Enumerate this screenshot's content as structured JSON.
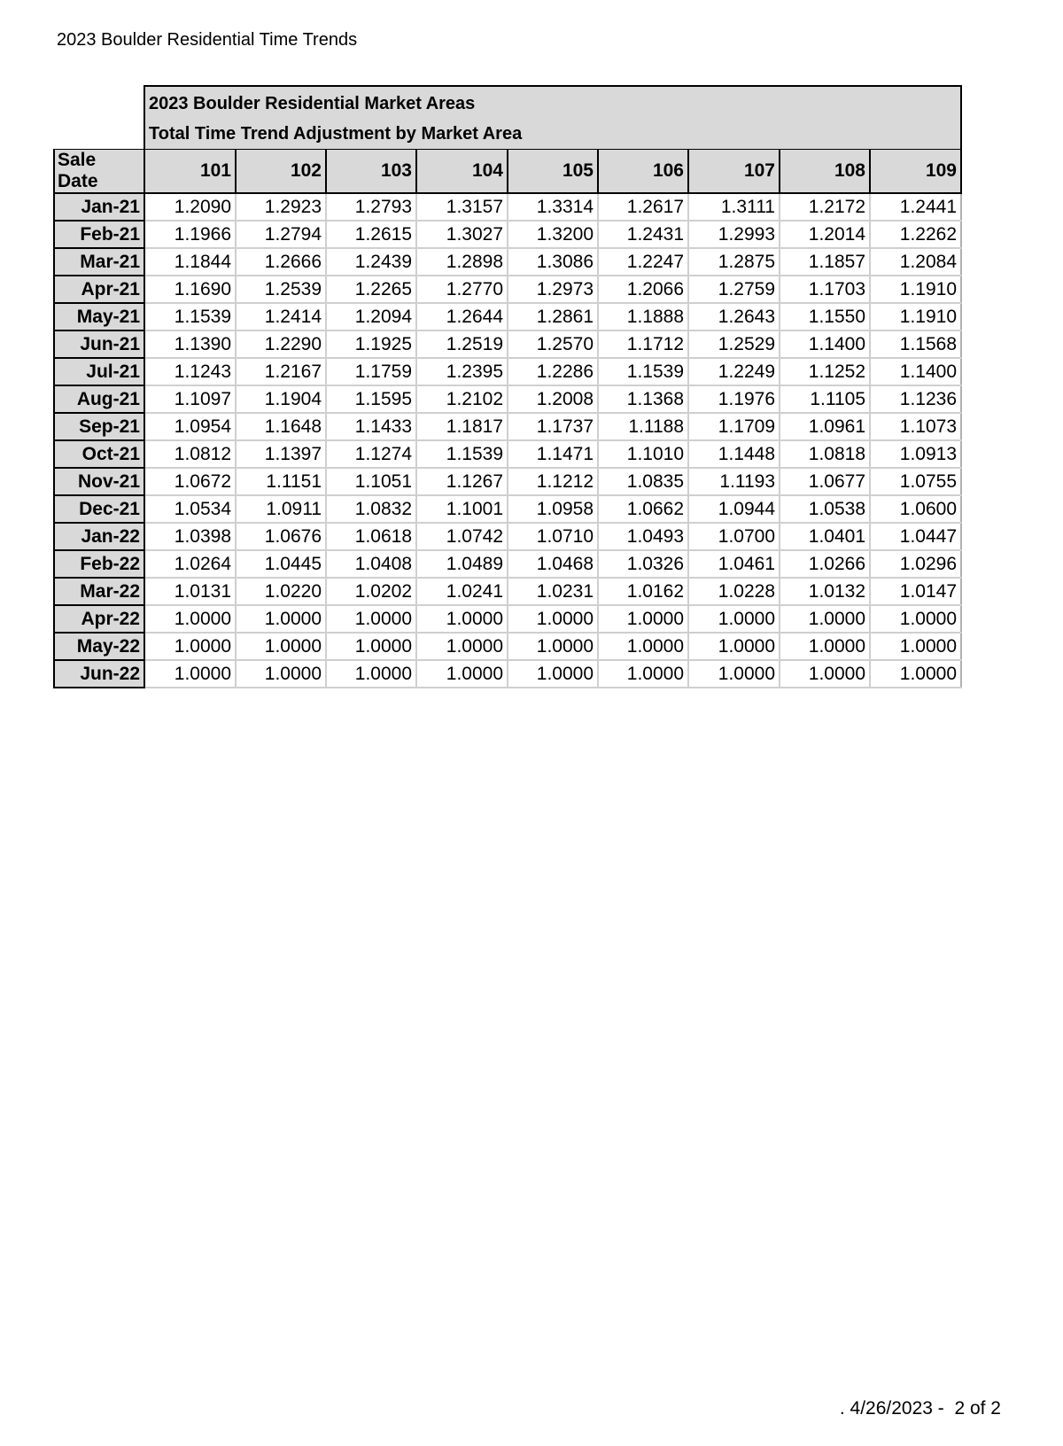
{
  "page_title": "2023 Boulder Residential Time Trends",
  "table": {
    "title_line1": "2023 Boulder Residential Market Areas",
    "title_line2": "Total Time Trend Adjustment by Market Area",
    "corner_header": "Sale Date",
    "columns": [
      "101",
      "102",
      "103",
      "104",
      "105",
      "106",
      "107",
      "108",
      "109"
    ],
    "rows": [
      {
        "date": "Jan-21",
        "values": [
          "1.2090",
          "1.2923",
          "1.2793",
          "1.3157",
          "1.3314",
          "1.2617",
          "1.3111",
          "1.2172",
          "1.2441"
        ]
      },
      {
        "date": "Feb-21",
        "values": [
          "1.1966",
          "1.2794",
          "1.2615",
          "1.3027",
          "1.3200",
          "1.2431",
          "1.2993",
          "1.2014",
          "1.2262"
        ]
      },
      {
        "date": "Mar-21",
        "values": [
          "1.1844",
          "1.2666",
          "1.2439",
          "1.2898",
          "1.3086",
          "1.2247",
          "1.2875",
          "1.1857",
          "1.2084"
        ]
      },
      {
        "date": "Apr-21",
        "values": [
          "1.1690",
          "1.2539",
          "1.2265",
          "1.2770",
          "1.2973",
          "1.2066",
          "1.2759",
          "1.1703",
          "1.1910"
        ]
      },
      {
        "date": "May-21",
        "values": [
          "1.1539",
          "1.2414",
          "1.2094",
          "1.2644",
          "1.2861",
          "1.1888",
          "1.2643",
          "1.1550",
          "1.1910"
        ]
      },
      {
        "date": "Jun-21",
        "values": [
          "1.1390",
          "1.2290",
          "1.1925",
          "1.2519",
          "1.2570",
          "1.1712",
          "1.2529",
          "1.1400",
          "1.1568"
        ]
      },
      {
        "date": "Jul-21",
        "values": [
          "1.1243",
          "1.2167",
          "1.1759",
          "1.2395",
          "1.2286",
          "1.1539",
          "1.2249",
          "1.1252",
          "1.1400"
        ]
      },
      {
        "date": "Aug-21",
        "values": [
          "1.1097",
          "1.1904",
          "1.1595",
          "1.2102",
          "1.2008",
          "1.1368",
          "1.1976",
          "1.1105",
          "1.1236"
        ]
      },
      {
        "date": "Sep-21",
        "values": [
          "1.0954",
          "1.1648",
          "1.1433",
          "1.1817",
          "1.1737",
          "1.1188",
          "1.1709",
          "1.0961",
          "1.1073"
        ]
      },
      {
        "date": "Oct-21",
        "values": [
          "1.0812",
          "1.1397",
          "1.1274",
          "1.1539",
          "1.1471",
          "1.1010",
          "1.1448",
          "1.0818",
          "1.0913"
        ]
      },
      {
        "date": "Nov-21",
        "values": [
          "1.0672",
          "1.1151",
          "1.1051",
          "1.1267",
          "1.1212",
          "1.0835",
          "1.1193",
          "1.0677",
          "1.0755"
        ]
      },
      {
        "date": "Dec-21",
        "values": [
          "1.0534",
          "1.0911",
          "1.0832",
          "1.1001",
          "1.0958",
          "1.0662",
          "1.0944",
          "1.0538",
          "1.0600"
        ]
      },
      {
        "date": "Jan-22",
        "values": [
          "1.0398",
          "1.0676",
          "1.0618",
          "1.0742",
          "1.0710",
          "1.0493",
          "1.0700",
          "1.0401",
          "1.0447"
        ]
      },
      {
        "date": "Feb-22",
        "values": [
          "1.0264",
          "1.0445",
          "1.0408",
          "1.0489",
          "1.0468",
          "1.0326",
          "1.0461",
          "1.0266",
          "1.0296"
        ]
      },
      {
        "date": "Mar-22",
        "values": [
          "1.0131",
          "1.0220",
          "1.0202",
          "1.0241",
          "1.0231",
          "1.0162",
          "1.0228",
          "1.0132",
          "1.0147"
        ]
      },
      {
        "date": "Apr-22",
        "values": [
          "1.0000",
          "1.0000",
          "1.0000",
          "1.0000",
          "1.0000",
          "1.0000",
          "1.0000",
          "1.0000",
          "1.0000"
        ]
      },
      {
        "date": "May-22",
        "values": [
          "1.0000",
          "1.0000",
          "1.0000",
          "1.0000",
          "1.0000",
          "1.0000",
          "1.0000",
          "1.0000",
          "1.0000"
        ]
      },
      {
        "date": "Jun-22",
        "values": [
          "1.0000",
          "1.0000",
          "1.0000",
          "1.0000",
          "1.0000",
          "1.0000",
          "1.0000",
          "1.0000",
          "1.0000"
        ]
      }
    ]
  },
  "footer": ". 4/26/2023 -  2 of 2",
  "colors": {
    "header_fill": "#d9d9d9",
    "grid_line": "#cfcfcf",
    "border": "#000000"
  }
}
